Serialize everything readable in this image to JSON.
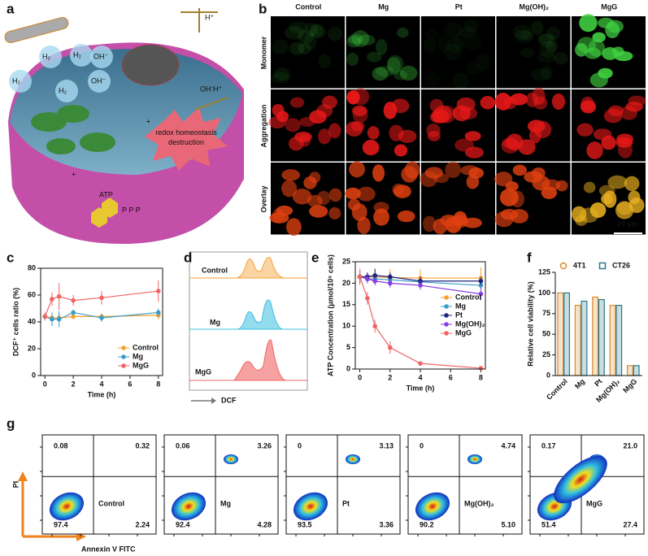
{
  "panel_labels": [
    "a",
    "b",
    "c",
    "d",
    "e",
    "f",
    "g"
  ],
  "panel_a": {
    "texts": [
      "H₂",
      "H₂",
      "H₂",
      "H₂",
      "OH⁻",
      "OH⁻",
      "OH⁻",
      "H⁺",
      "H⁺",
      "ATP",
      "P P P",
      "redox homeostasis destruction"
    ]
  },
  "panel_b": {
    "columns": [
      "Control",
      "Mg",
      "Pt",
      "Mg(OH)₂",
      "MgG"
    ],
    "rows": [
      "Monomer",
      "Aggregation",
      "Overlay"
    ],
    "scale_bar": "20 μm"
  },
  "panel_d": {
    "series": [
      "Control",
      "Mg",
      "MgG"
    ],
    "x_label": "DCF"
  },
  "chart_data": [
    {
      "type": "line",
      "x_label": "Time (h)",
      "y_label": "DCF⁺ cells ratio (%)",
      "x": [
        0,
        0.5,
        1,
        2,
        4,
        8
      ],
      "xlim": [
        -0.3,
        8.3
      ],
      "xticks": [
        0,
        2,
        4,
        6,
        8
      ],
      "ylim": [
        0,
        80
      ],
      "yticks": [
        0,
        20,
        40,
        60,
        80
      ],
      "legend": "lower right",
      "series": [
        {
          "name": "Control",
          "color": "#f5a030",
          "values": [
            44,
            43,
            43,
            44,
            44,
            45
          ],
          "errors": [
            2,
            3,
            3,
            2,
            2,
            3
          ]
        },
        {
          "name": "Mg",
          "color": "#3a9cc8",
          "values": [
            44,
            42,
            42,
            47,
            43,
            47
          ],
          "errors": [
            2,
            5,
            6,
            2,
            3,
            3
          ]
        },
        {
          "name": "MgG",
          "color": "#f06464",
          "values": [
            44,
            57,
            59,
            56,
            58,
            63
          ],
          "errors": [
            3,
            5,
            10,
            4,
            5,
            8
          ]
        }
      ]
    },
    {
      "type": "line",
      "x_label": "Time (h)",
      "y_label": "ATP Concentration (μmol/10⁶ cells)",
      "x": [
        0,
        0.5,
        1,
        2,
        4,
        8
      ],
      "xlim": [
        -0.3,
        8.3
      ],
      "xticks": [
        0,
        2,
        4,
        6,
        8
      ],
      "ylim": [
        0,
        25
      ],
      "yticks": [
        0,
        5,
        10,
        15,
        20,
        25
      ],
      "legend": "center right",
      "series": [
        {
          "name": "Control",
          "color": "#f5a030",
          "values": [
            21.5,
            21.5,
            21.5,
            21.3,
            21.2,
            21.2
          ],
          "errors": [
            2,
            1,
            2,
            2,
            2,
            2.5
          ]
        },
        {
          "name": "Mg",
          "color": "#3a9cc8",
          "values": [
            21.5,
            21,
            21,
            20.8,
            20.3,
            19.5
          ],
          "errors": [
            1.5,
            1,
            1,
            1,
            1,
            1
          ]
        },
        {
          "name": "Pt",
          "color": "#1a237e",
          "values": [
            21.5,
            21.5,
            21.8,
            21.5,
            20.5,
            20.5
          ],
          "errors": [
            1.5,
            1,
            1.5,
            1,
            1,
            1
          ]
        },
        {
          "name": "Mg(OH)₂",
          "color": "#8a3ee0",
          "values": [
            21.5,
            21,
            20.5,
            20,
            19.5,
            17.5
          ],
          "errors": [
            1.5,
            1,
            1,
            1,
            1,
            1.5
          ]
        },
        {
          "name": "MgG",
          "color": "#f06464",
          "values": [
            21.5,
            16.5,
            10,
            5,
            1.3,
            0.2
          ],
          "errors": [
            1.5,
            1.5,
            1.5,
            1.5,
            0.3,
            0.2
          ]
        }
      ]
    },
    {
      "type": "bar",
      "y_label": "Relative cell viability (%)",
      "categories": [
        "Control",
        "Mg",
        "Pt",
        "Mg(OH)₂",
        "MgG"
      ],
      "ylim": [
        0,
        125
      ],
      "yticks": [
        0,
        25,
        50,
        75,
        100,
        125
      ],
      "legend": "upper right",
      "series": [
        {
          "name": "4T1",
          "color": "#d98a2b",
          "values": [
            100,
            85,
            95,
            85,
            12
          ]
        },
        {
          "name": "CT26",
          "color": "#2a7a8a",
          "values": [
            100,
            90,
            92,
            85,
            12
          ]
        }
      ]
    }
  ],
  "panel_g": {
    "x_label": "Annexin V FITC",
    "y_label": "PI",
    "plots": [
      {
        "name": "Control",
        "color": "#f5a030",
        "quadrants": [
          "0.08",
          "0.32",
          "97.4",
          "2.24"
        ]
      },
      {
        "name": "Mg",
        "color": "#3a9cc8",
        "quadrants": [
          "0.06",
          "3.26",
          "92.4",
          "4.28"
        ]
      },
      {
        "name": "Pt",
        "color": "#1a1aa0",
        "quadrants": [
          "0",
          "3.13",
          "93.5",
          "3.36"
        ]
      },
      {
        "name": "Mg(OH)₂",
        "color": "#9a30e0",
        "quadrants": [
          "0",
          "4.74",
          "90.2",
          "5.10"
        ]
      },
      {
        "name": "MgG",
        "color": "#f06464",
        "quadrants": [
          "0.17",
          "21.0",
          "51.4",
          "27.4"
        ]
      }
    ]
  }
}
